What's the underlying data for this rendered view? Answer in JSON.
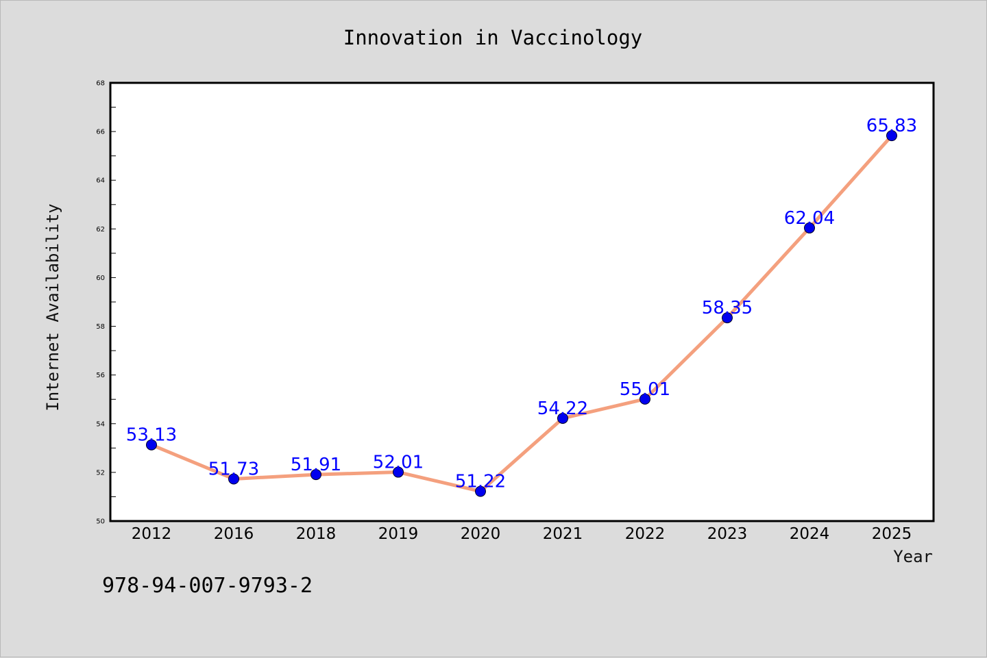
{
  "chart_data": {
    "type": "line",
    "title": "Innovation in Vaccinology",
    "xlabel": "Year",
    "ylabel": "Internet Availability",
    "categories": [
      "2012",
      "2016",
      "2018",
      "2019",
      "2020",
      "2021",
      "2022",
      "2023",
      "2024",
      "2025"
    ],
    "series": [
      {
        "values": [
          53.13,
          51.73,
          51.91,
          52.01,
          51.22,
          54.22,
          55.01,
          58.35,
          62.04,
          65.83
        ],
        "labels": [
          "53.13",
          "51.73",
          "51.91",
          "52.01",
          "51.22",
          "54.22",
          "55.01",
          "58.35",
          "62.04",
          "65.83"
        ]
      }
    ],
    "ylim": [
      50,
      68
    ],
    "yticks": [
      50,
      52,
      54,
      56,
      58,
      60,
      62,
      64,
      66,
      68
    ],
    "ytick_labels": [
      "50",
      "52",
      "54",
      "56",
      "58",
      "60",
      "62",
      "64",
      "66",
      "68"
    ],
    "grid": false,
    "legend": "none",
    "colors": {
      "line": "#f4a07e",
      "marker": "#0000ee",
      "data_label": "#0000ff",
      "background": "#dcdcdc",
      "plot_background": "#ffffff"
    }
  },
  "footer": {
    "text": "978-94-007-9793-2"
  }
}
